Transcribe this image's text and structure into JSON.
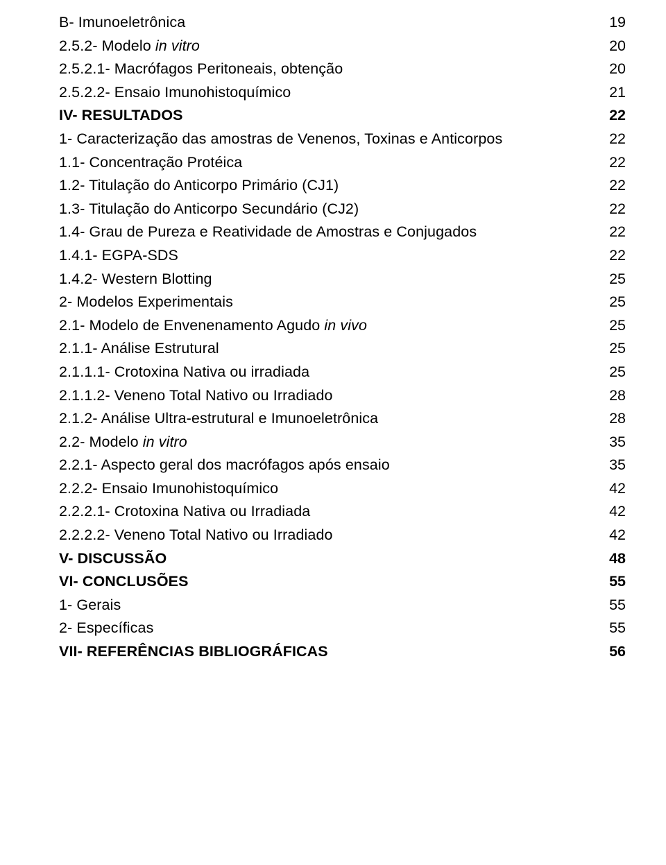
{
  "entries": [
    {
      "label_pre": "B- Imunoeletrônica",
      "label_italic": "",
      "label_post": "",
      "page": "19",
      "bold": false
    },
    {
      "label_pre": "2.5.2- Modelo ",
      "label_italic": "in vitro",
      "label_post": "",
      "page": "20",
      "bold": false
    },
    {
      "label_pre": "2.5.2.1- Macrófagos Peritoneais, obtenção",
      "label_italic": "",
      "label_post": "",
      "page": "20",
      "bold": false
    },
    {
      "label_pre": "2.5.2.2- Ensaio Imunohistoquímico",
      "label_italic": "",
      "label_post": "",
      "page": "21",
      "bold": false
    },
    {
      "label_pre": "IV- RESULTADOS",
      "label_italic": "",
      "label_post": "",
      "page": "22",
      "bold": true
    },
    {
      "label_pre": "1- Caracterização das amostras de Venenos, Toxinas e Anticorpos",
      "label_italic": "",
      "label_post": "",
      "page": "22",
      "bold": false
    },
    {
      "label_pre": "1.1- Concentração Protéica",
      "label_italic": "",
      "label_post": "",
      "page": "22",
      "bold": false
    },
    {
      "label_pre": "1.2- Titulação do Anticorpo Primário (CJ1)",
      "label_italic": "",
      "label_post": "",
      "page": "22",
      "bold": false
    },
    {
      "label_pre": "1.3- Titulação do Anticorpo Secundário (CJ2)",
      "label_italic": "",
      "label_post": "",
      "page": "22",
      "bold": false
    },
    {
      "label_pre": "1.4- Grau de Pureza e Reatividade de Amostras e Conjugados",
      "label_italic": "",
      "label_post": "",
      "page": "22",
      "bold": false
    },
    {
      "label_pre": "1.4.1- EGPA-SDS",
      "label_italic": "",
      "label_post": "",
      "page": "22",
      "bold": false
    },
    {
      "label_pre": "1.4.2- Western Blotting",
      "label_italic": "",
      "label_post": "",
      "page": "25",
      "bold": false
    },
    {
      "label_pre": "2- Modelos Experimentais",
      "label_italic": "",
      "label_post": "",
      "page": "25",
      "bold": false
    },
    {
      "label_pre": "2.1- Modelo de Envenenamento Agudo ",
      "label_italic": "in vivo",
      "label_post": "",
      "page": "25",
      "bold": false
    },
    {
      "label_pre": "2.1.1- Análise Estrutural",
      "label_italic": "",
      "label_post": "",
      "page": "25",
      "bold": false
    },
    {
      "label_pre": "2.1.1.1- Crotoxina Nativa ou irradiada",
      "label_italic": "",
      "label_post": "",
      "page": "25",
      "bold": false
    },
    {
      "label_pre": "2.1.1.2- Veneno Total Nativo ou Irradiado",
      "label_italic": "",
      "label_post": "",
      "page": "28",
      "bold": false
    },
    {
      "label_pre": "2.1.2- Análise Ultra-estrutural e Imunoeletrônica",
      "label_italic": "",
      "label_post": "",
      "page": "28",
      "bold": false
    },
    {
      "label_pre": "2.2- Modelo ",
      "label_italic": "in vitro",
      "label_post": "",
      "page": "35",
      "bold": false
    },
    {
      "label_pre": "2.2.1- Aspecto geral dos macrófagos após ensaio",
      "label_italic": "",
      "label_post": "",
      "page": "35",
      "bold": false
    },
    {
      "label_pre": "2.2.2- Ensaio Imunohistoquímico",
      "label_italic": "",
      "label_post": "",
      "page": "42",
      "bold": false
    },
    {
      "label_pre": "2.2.2.1- Crotoxina Nativa ou Irradiada",
      "label_italic": "",
      "label_post": "",
      "page": "42",
      "bold": false
    },
    {
      "label_pre": "2.2.2.2- Veneno Total Nativo ou Irradiado",
      "label_italic": "",
      "label_post": "",
      "page": "42",
      "bold": false
    },
    {
      "label_pre": "V- DISCUSSÃO",
      "label_italic": "",
      "label_post": "",
      "page": "48",
      "bold": true
    },
    {
      "label_pre": "VI- CONCLUSÕES",
      "label_italic": "",
      "label_post": "",
      "page": "55",
      "bold": true
    },
    {
      "label_pre": "1- Gerais",
      "label_italic": "",
      "label_post": "",
      "page": "55",
      "bold": false
    },
    {
      "label_pre": "2- Específicas",
      "label_italic": "",
      "label_post": "",
      "page": "55",
      "bold": false
    },
    {
      "label_pre": "VII- REFERÊNCIAS BIBLIOGRÁFICAS",
      "label_italic": "",
      "label_post": "",
      "page": "56",
      "bold": true
    }
  ]
}
